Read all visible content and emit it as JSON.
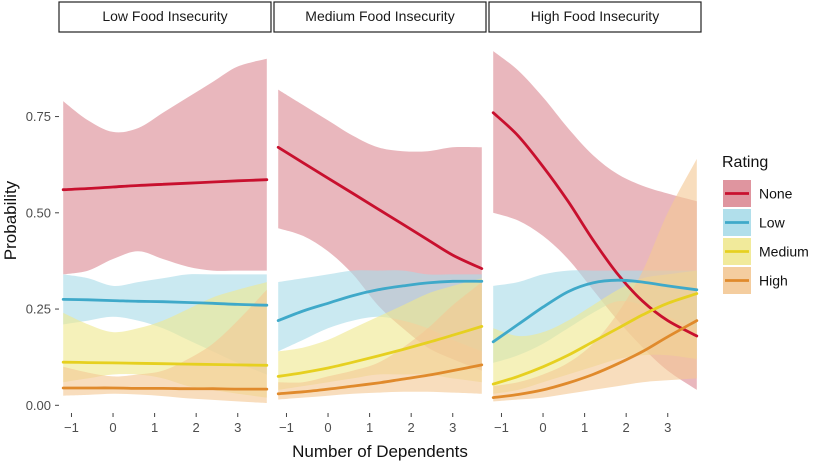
{
  "chart_data": {
    "type": "line",
    "xlabel": "Number of Dependents",
    "ylabel": "Probability",
    "xlim": [
      -1.3,
      3.8
    ],
    "ylim": [
      -0.02,
      0.98
    ],
    "x_ticks": [
      -1,
      0,
      1,
      2,
      3
    ],
    "x_tick_labels": [
      "−1",
      "0",
      "1",
      "2",
      "3"
    ],
    "y_ticks": [
      0.0,
      0.25,
      0.5,
      0.75
    ],
    "y_tick_labels": [
      "0.00",
      "0.25",
      "0.50",
      "0.75"
    ],
    "legend": {
      "title": "Rating",
      "position": "right",
      "items": [
        {
          "label": "None",
          "line_color": "#c8102e",
          "band_color": "#dc8a95"
        },
        {
          "label": "Low",
          "line_color": "#3fa9c9",
          "band_color": "#a9dbe9"
        },
        {
          "label": "Medium",
          "line_color": "#e6d020",
          "band_color": "#efe890"
        },
        {
          "label": "High",
          "line_color": "#e08a2c",
          "band_color": "#f3c895"
        }
      ]
    },
    "x": [
      -1.2,
      -0.6,
      0,
      0.6,
      1.2,
      1.8,
      2.4,
      3.0,
      3.7
    ],
    "panels": [
      {
        "title": "Low Food Insecurity",
        "series": [
          {
            "name": "None",
            "values": [
              0.56,
              0.563,
              0.567,
              0.571,
              0.574,
              0.577,
              0.58,
              0.583,
              0.586
            ],
            "lower": [
              0.34,
              0.35,
              0.38,
              0.4,
              0.38,
              0.36,
              0.35,
              0.35,
              0.35
            ],
            "upper": [
              0.79,
              0.74,
              0.71,
              0.72,
              0.76,
              0.8,
              0.84,
              0.88,
              0.9
            ]
          },
          {
            "name": "Low",
            "values": [
              0.275,
              0.274,
              0.272,
              0.27,
              0.269,
              0.267,
              0.265,
              0.262,
              0.26
            ],
            "lower": [
              0.21,
              0.22,
              0.23,
              0.22,
              0.2,
              0.17,
              0.14,
              0.11,
              0.08
            ],
            "upper": [
              0.34,
              0.33,
              0.31,
              0.32,
              0.33,
              0.34,
              0.34,
              0.34,
              0.34
            ]
          },
          {
            "name": "Medium",
            "values": [
              0.112,
              0.111,
              0.11,
              0.109,
              0.108,
              0.107,
              0.106,
              0.105,
              0.104
            ],
            "lower": [
              0.06,
              0.07,
              0.08,
              0.08,
              0.07,
              0.05,
              0.04,
              0.03,
              0.02
            ],
            "upper": [
              0.24,
              0.21,
              0.19,
              0.2,
              0.22,
              0.25,
              0.28,
              0.3,
              0.32
            ]
          },
          {
            "name": "High",
            "values": [
              0.045,
              0.045,
              0.045,
              0.044,
              0.044,
              0.043,
              0.043,
              0.042,
              0.042
            ],
            "lower": [
              0.025,
              0.027,
              0.03,
              0.028,
              0.024,
              0.018,
              0.014,
              0.01,
              0.006
            ],
            "upper": [
              0.1,
              0.085,
              0.075,
              0.08,
              0.09,
              0.12,
              0.16,
              0.22,
              0.3
            ]
          }
        ]
      },
      {
        "title": "Medium Food Insecurity",
        "series": [
          {
            "name": "None",
            "values": [
              0.67,
              0.63,
              0.59,
              0.55,
              0.51,
              0.47,
              0.43,
              0.39,
              0.355
            ],
            "lower": [
              0.46,
              0.44,
              0.4,
              0.34,
              0.26,
              0.2,
              0.15,
              0.12,
              0.09
            ],
            "upper": [
              0.82,
              0.78,
              0.74,
              0.7,
              0.67,
              0.66,
              0.66,
              0.67,
              0.67
            ]
          },
          {
            "name": "Low",
            "values": [
              0.22,
              0.245,
              0.265,
              0.285,
              0.3,
              0.31,
              0.318,
              0.322,
              0.322
            ],
            "lower": [
              0.14,
              0.17,
              0.2,
              0.22,
              0.23,
              0.22,
              0.2,
              0.17,
              0.14
            ],
            "upper": [
              0.32,
              0.33,
              0.34,
              0.35,
              0.35,
              0.35,
              0.34,
              0.34,
              0.34
            ]
          },
          {
            "name": "Medium",
            "values": [
              0.075,
              0.085,
              0.097,
              0.112,
              0.128,
              0.145,
              0.163,
              0.182,
              0.205
            ],
            "lower": [
              0.04,
              0.05,
              0.06,
              0.07,
              0.08,
              0.08,
              0.08,
              0.07,
              0.06
            ],
            "upper": [
              0.14,
              0.15,
              0.17,
              0.2,
              0.23,
              0.26,
              0.29,
              0.31,
              0.33
            ]
          },
          {
            "name": "High",
            "values": [
              0.03,
              0.035,
              0.042,
              0.05,
              0.058,
              0.068,
              0.078,
              0.09,
              0.105
            ],
            "lower": [
              0.015,
              0.02,
              0.025,
              0.03,
              0.033,
              0.035,
              0.035,
              0.033,
              0.03
            ],
            "upper": [
              0.06,
              0.06,
              0.075,
              0.09,
              0.11,
              0.15,
              0.2,
              0.26,
              0.32
            ]
          }
        ]
      },
      {
        "title": "High Food Insecurity",
        "series": [
          {
            "name": "None",
            "values": [
              0.76,
              0.7,
              0.62,
              0.53,
              0.43,
              0.34,
              0.27,
              0.22,
              0.18
            ],
            "lower": [
              0.5,
              0.48,
              0.44,
              0.38,
              0.3,
              0.22,
              0.15,
              0.09,
              0.04
            ],
            "upper": [
              0.92,
              0.87,
              0.8,
              0.72,
              0.65,
              0.6,
              0.57,
              0.55,
              0.53
            ]
          },
          {
            "name": "Low",
            "values": [
              0.165,
              0.21,
              0.255,
              0.295,
              0.318,
              0.325,
              0.32,
              0.31,
              0.3
            ],
            "lower": [
              0.11,
              0.13,
              0.16,
              0.2,
              0.24,
              0.27,
              0.26,
              0.23,
              0.2
            ],
            "upper": [
              0.31,
              0.32,
              0.34,
              0.35,
              0.35,
              0.35,
              0.35,
              0.35,
              0.35
            ]
          },
          {
            "name": "Medium",
            "values": [
              0.055,
              0.075,
              0.1,
              0.13,
              0.165,
              0.2,
              0.235,
              0.265,
              0.29
            ],
            "lower": [
              0.03,
              0.04,
              0.06,
              0.08,
              0.1,
              0.12,
              0.13,
              0.13,
              0.12
            ],
            "upper": [
              0.2,
              0.18,
              0.19,
              0.22,
              0.26,
              0.3,
              0.33,
              0.34,
              0.35
            ]
          },
          {
            "name": "High",
            "values": [
              0.02,
              0.028,
              0.04,
              0.058,
              0.08,
              0.108,
              0.14,
              0.178,
              0.22
            ],
            "lower": [
              0.01,
              0.015,
              0.02,
              0.03,
              0.04,
              0.05,
              0.06,
              0.065,
              0.07
            ],
            "upper": [
              0.05,
              0.06,
              0.08,
              0.11,
              0.16,
              0.24,
              0.35,
              0.5,
              0.64
            ]
          }
        ]
      }
    ]
  }
}
